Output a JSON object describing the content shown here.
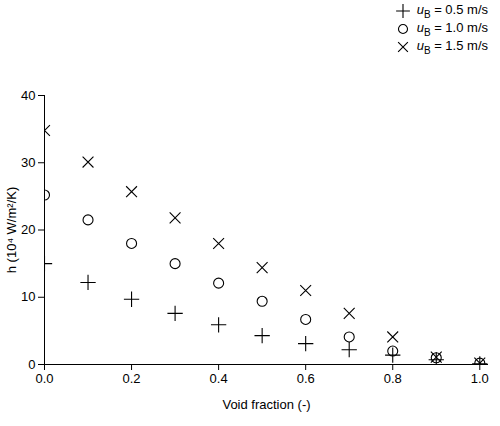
{
  "chart_data": {
    "type": "scatter",
    "x_label": "Void fraction (-)",
    "y_label": "h (10⁴ W/m²/K)",
    "x": [
      0,
      0.1,
      0.2,
      0.3,
      0.4,
      0.5,
      0.6,
      0.7,
      0.8,
      0.9,
      1.0
    ],
    "series": [
      {
        "name": "uB = 0.5 m/s",
        "color": "#000000",
        "marker": "plus",
        "values": [
          15,
          12.2,
          9.7,
          7.6,
          5.9,
          4.3,
          3.1,
          2.2,
          1.4,
          0.7,
          0.1
        ]
      },
      {
        "name": "uB = 1.0 m/s",
        "color": "#000000",
        "marker": "circle",
        "values": [
          25.2,
          21.5,
          18,
          15,
          12.1,
          9.4,
          6.7,
          4.1,
          2.0,
          1.0,
          0.2
        ]
      },
      {
        "name": "uB = 1.5 m/s",
        "color": "#000000",
        "marker": "times",
        "values": [
          34.8,
          30.1,
          25.7,
          21.8,
          18,
          14.4,
          11,
          7.6,
          4.1,
          1.1,
          0.2
        ]
      }
    ],
    "xlim": [
      0,
      1.02
    ],
    "ylim": [
      0,
      40
    ],
    "xticks": [
      {
        "value": 0,
        "label": "0.0"
      },
      {
        "value": 0.2,
        "label": "0.2"
      },
      {
        "value": 0.4,
        "label": "0.4"
      },
      {
        "value": 0.6,
        "label": "0.6"
      },
      {
        "value": 0.8,
        "label": "0.8"
      },
      {
        "value": 1.0,
        "label": "1.0"
      }
    ],
    "yticks": [
      0,
      10,
      20,
      30,
      40
    ],
    "grid": false,
    "legend": "top right"
  }
}
